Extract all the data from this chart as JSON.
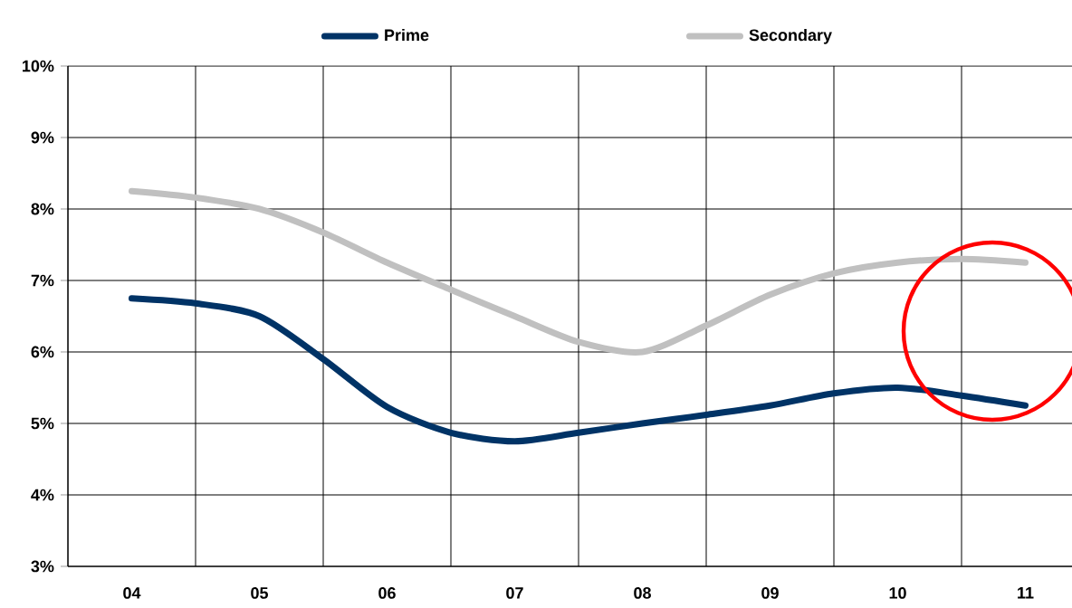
{
  "chart_data": {
    "type": "line",
    "categories": [
      "04",
      null,
      "05",
      null,
      "06",
      null,
      "07",
      null,
      "08",
      null,
      "09",
      null,
      "10",
      null,
      "11"
    ],
    "series": [
      {
        "name": "Prime",
        "color": "#003366",
        "values": [
          6.75,
          6.68,
          6.5,
          5.9,
          5.23,
          4.87,
          4.75,
          4.87,
          5.0,
          5.12,
          5.25,
          5.42,
          5.5,
          5.39,
          5.25
        ]
      },
      {
        "name": "Secondary",
        "color": "#c0c0c0",
        "values": [
          8.25,
          8.16,
          8.0,
          7.67,
          7.25,
          6.87,
          6.5,
          6.14,
          6.0,
          6.37,
          6.8,
          7.1,
          7.25,
          7.3,
          7.25
        ]
      }
    ],
    "ylim": [
      3,
      10
    ],
    "yticks": [
      {
        "value": 3,
        "label": "3%"
      },
      {
        "value": 4,
        "label": "4%"
      },
      {
        "value": 5,
        "label": "5%"
      },
      {
        "value": 6,
        "label": "6%"
      },
      {
        "value": 7,
        "label": "7%"
      },
      {
        "value": 8,
        "label": "8%"
      },
      {
        "value": 9,
        "label": "9%"
      },
      {
        "value": 10,
        "label": "10%"
      }
    ],
    "grid": true,
    "legend": "top",
    "marker": "none",
    "line_style": "solid"
  }
}
